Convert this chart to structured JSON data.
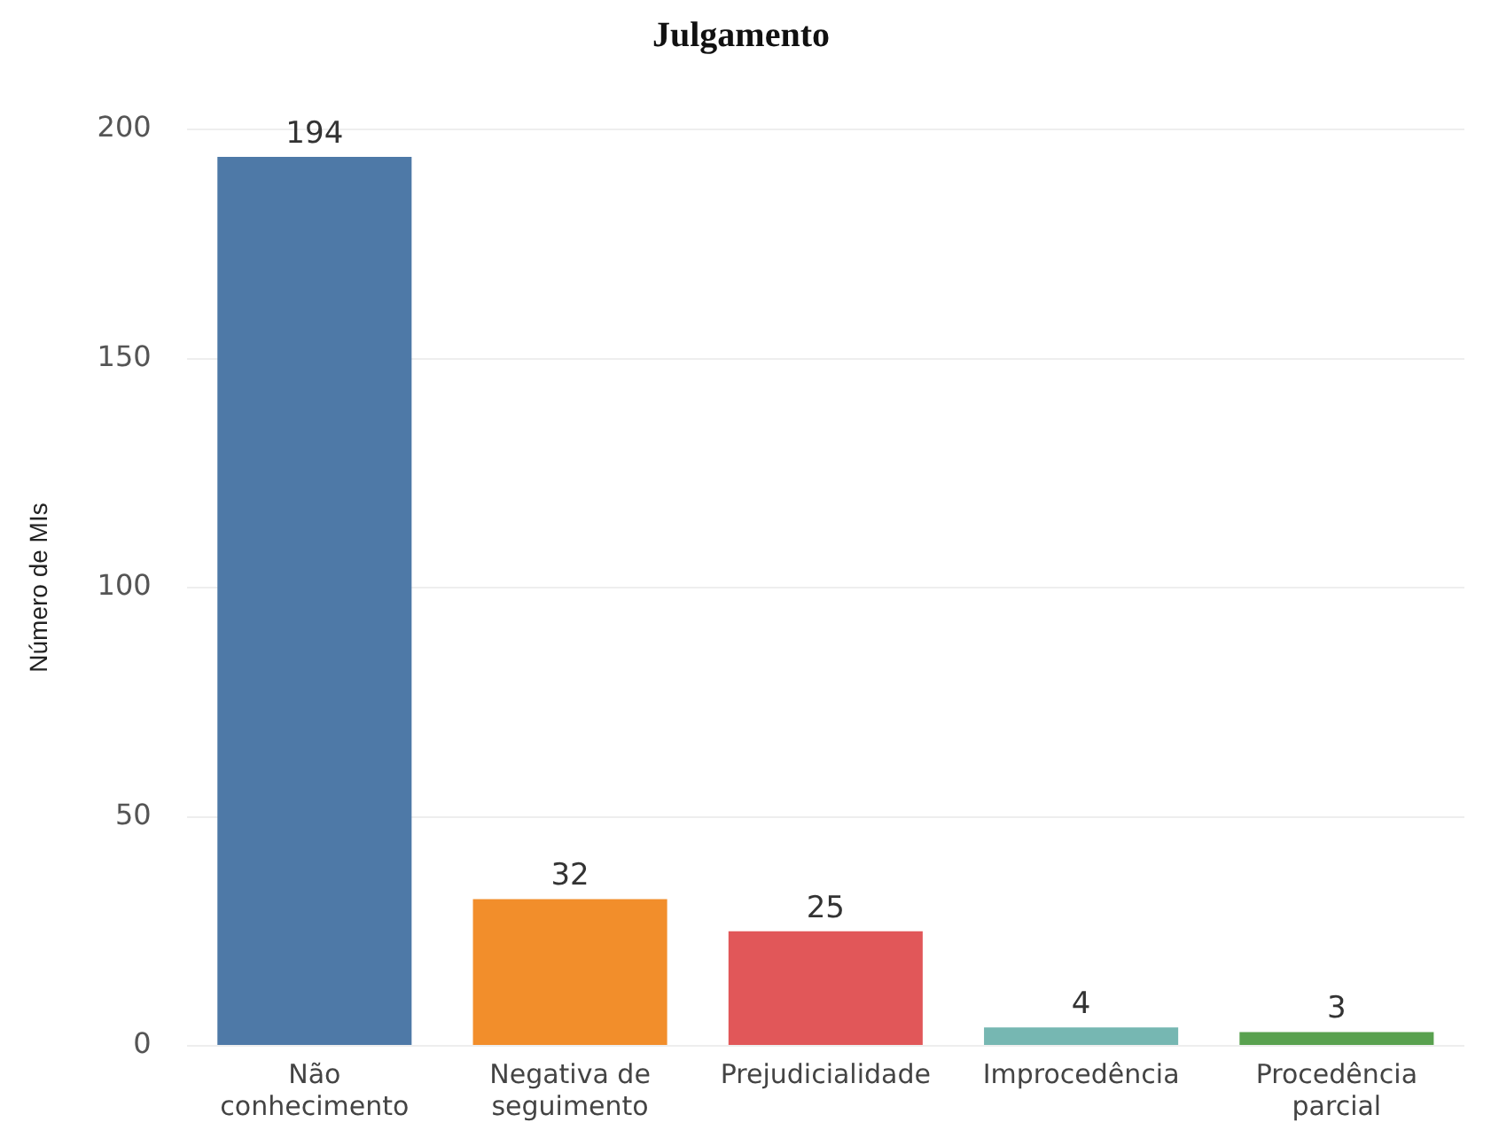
{
  "chart_data": {
    "type": "bar",
    "title": "Julgamento",
    "ylabel": "Número de MIs",
    "categories": [
      "Não conhecimento",
      "Negativa de seguimento",
      "Prejudicialidade",
      "Improcedência",
      "Procedência parcial"
    ],
    "values": [
      194,
      32,
      25,
      4,
      3
    ],
    "colors": [
      "#4e79a7",
      "#f28e2b",
      "#e15759",
      "#76b7b2",
      "#59a14f"
    ],
    "ylim": [
      0,
      200
    ],
    "yticks": [
      0,
      50,
      100,
      150,
      200
    ],
    "grid": "y",
    "data_labels": true,
    "legend": false
  }
}
